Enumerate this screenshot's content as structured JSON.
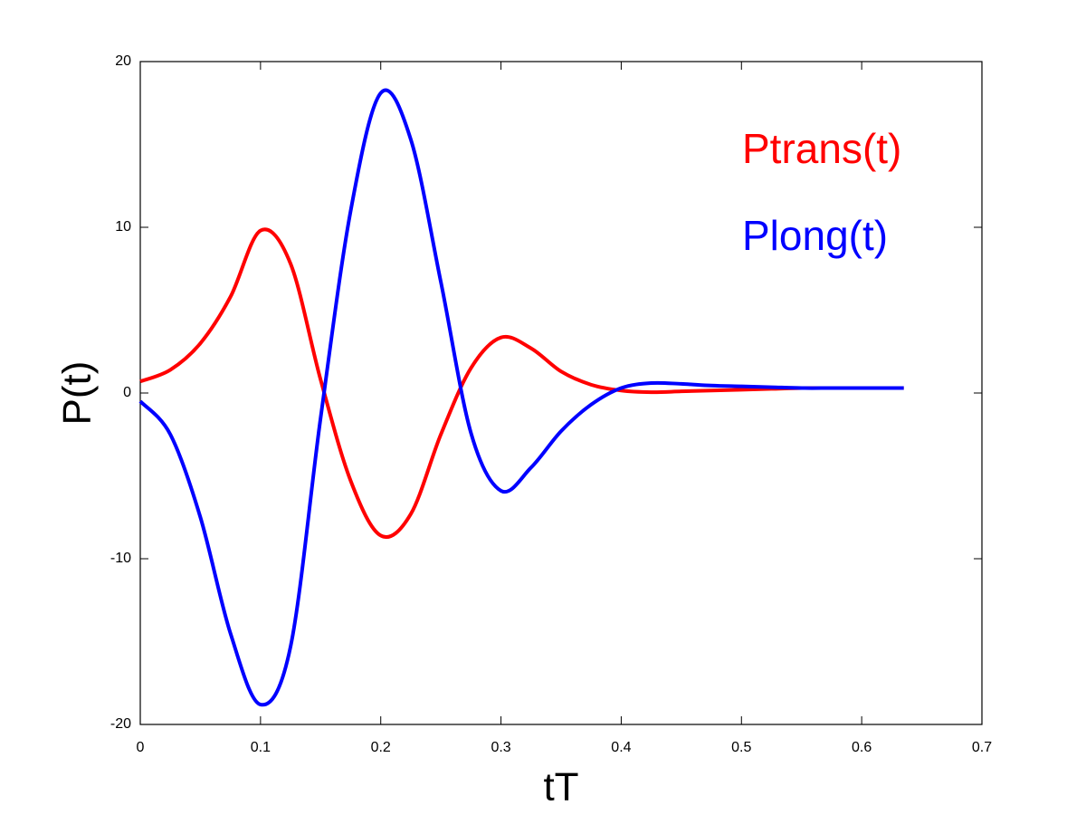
{
  "chart_data": {
    "type": "line",
    "xlabel": "tT",
    "ylabel": "P(t)",
    "x": [
      0,
      0.025,
      0.05,
      0.075,
      0.1,
      0.125,
      0.15,
      0.175,
      0.2,
      0.225,
      0.25,
      0.275,
      0.3,
      0.325,
      0.35,
      0.375,
      0.4,
      0.425,
      0.45,
      0.475,
      0.5,
      0.525,
      0.55,
      0.575,
      0.6,
      0.625,
      0.635
    ],
    "series": [
      {
        "name": "Ptrans(t)",
        "color": "#ff0000",
        "values": [
          0.7,
          1.4,
          3.0,
          5.8,
          9.8,
          7.8,
          0.8,
          -5.3,
          -8.6,
          -7.3,
          -2.5,
          1.5,
          3.35,
          2.7,
          1.3,
          0.5,
          0.15,
          0.05,
          0.1,
          0.15,
          0.2,
          0.25,
          0.3,
          0.3,
          0.3,
          0.3,
          0.3
        ]
      },
      {
        "name": "Plong(t)",
        "color": "#0000ff",
        "values": [
          -0.5,
          -2.5,
          -7.5,
          -14.5,
          -18.8,
          -15.3,
          -1.5,
          11.0,
          18.1,
          15.3,
          6.7,
          -2.4,
          -5.9,
          -4.5,
          -2.3,
          -0.7,
          0.3,
          0.6,
          0.55,
          0.45,
          0.4,
          0.35,
          0.3,
          0.3,
          0.3,
          0.3,
          0.3
        ]
      }
    ],
    "xlim": [
      0,
      0.7
    ],
    "xticks": [
      0,
      0.1,
      0.2,
      0.3,
      0.4,
      0.5,
      0.6,
      0.7
    ],
    "ylim": [
      -20,
      20
    ],
    "yticks": [
      -20,
      -10,
      0,
      10,
      20
    ],
    "legend": "upper right",
    "grid": false
  }
}
